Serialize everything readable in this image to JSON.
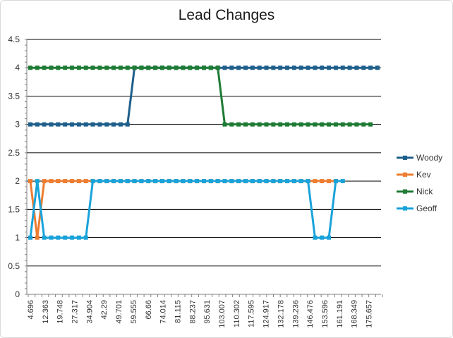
{
  "chart_data": {
    "type": "line",
    "title": "Lead Changes",
    "xlabel": "",
    "ylabel": "",
    "ylim": [
      0,
      4.5
    ],
    "y_ticks": [
      "0",
      "0.5",
      "1",
      "1.5",
      "2",
      "2.5",
      "3",
      "3.5",
      "4",
      "4.5"
    ],
    "grid": "horizontal",
    "legend_position": "right",
    "x_tick_labels": [
      "4.696",
      "12.363",
      "19.748",
      "27.317",
      "34.904",
      "42.29",
      "49.701",
      "59.555",
      "66.66",
      "74.014",
      "81.115",
      "88.237",
      "95.631",
      "103.007",
      "110.302",
      "117.595",
      "124.917",
      "132.178",
      "139.236",
      "146.476",
      "153.596",
      "161.191",
      "168.349",
      "175.657"
    ],
    "series": [
      {
        "name": "Woody",
        "color": "#1f5f8b",
        "values": [
          3,
          3,
          3,
          3,
          3,
          3,
          3,
          3,
          3,
          3,
          3,
          3,
          3,
          3,
          3,
          4,
          4,
          4,
          4,
          4,
          4,
          4,
          4,
          4,
          4,
          4,
          4,
          4,
          4,
          4,
          4,
          4,
          4,
          4,
          4,
          4,
          4,
          4,
          4,
          4,
          4,
          4,
          4,
          4,
          4,
          4,
          4,
          4,
          4,
          4,
          4
        ]
      },
      {
        "name": "Kev",
        "color": "#ed7d31",
        "values": [
          2,
          1,
          2,
          2,
          2,
          2,
          2,
          2,
          2,
          2,
          2,
          2,
          2,
          2,
          2,
          2,
          2,
          2,
          2,
          2,
          2,
          2,
          2,
          2,
          2,
          2,
          2,
          2,
          2,
          2,
          2,
          2,
          2,
          2,
          2,
          2,
          2,
          2,
          2,
          2,
          2,
          2,
          2,
          2,
          2
        ]
      },
      {
        "name": "Nick",
        "color": "#1e7b34",
        "values": [
          4,
          4,
          4,
          4,
          4,
          4,
          4,
          4,
          4,
          4,
          4,
          4,
          4,
          4,
          4,
          4,
          4,
          4,
          4,
          4,
          4,
          4,
          4,
          4,
          4,
          4,
          4,
          4,
          3,
          3,
          3,
          3,
          3,
          3,
          3,
          3,
          3,
          3,
          3,
          3,
          3,
          3,
          3,
          3,
          3,
          3,
          3,
          3,
          3,
          3
        ]
      },
      {
        "name": "Geoff",
        "color": "#1aa3d9",
        "values": [
          1,
          2,
          1,
          1,
          1,
          1,
          1,
          1,
          1,
          2,
          2,
          2,
          2,
          2,
          2,
          2,
          2,
          2,
          2,
          2,
          2,
          2,
          2,
          2,
          2,
          2,
          2,
          2,
          2,
          2,
          2,
          2,
          2,
          2,
          2,
          2,
          2,
          2,
          2,
          2,
          2,
          1,
          1,
          1,
          2,
          2
        ]
      }
    ]
  }
}
